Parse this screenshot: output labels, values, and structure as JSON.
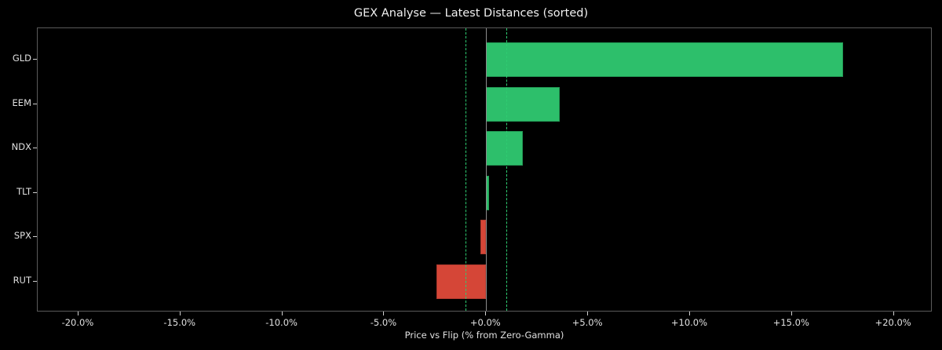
{
  "chart_data": {
    "type": "bar",
    "orientation": "horizontal",
    "title": "GEX Analyse — Latest Distances (sorted)",
    "xlabel": "Price vs Flip (% from Zero-Gamma)",
    "ylabel": "",
    "categories": [
      "GLD",
      "EEM",
      "NDX",
      "TLT",
      "SPX",
      "RUT"
    ],
    "values": [
      17.5,
      3.6,
      1.8,
      0.15,
      -0.27,
      -2.45
    ],
    "units": "%",
    "xlim": [
      -22.0,
      21.9
    ],
    "xticks": [
      -20,
      -15,
      -10,
      -5,
      0,
      5,
      10,
      15,
      20
    ],
    "xtick_labels": [
      "-20.0%",
      "-15.0%",
      "-10.0%",
      "-5.0%",
      "+0.0%",
      "+5.0%",
      "+10.0%",
      "+15.0%",
      "+20.0%"
    ],
    "reference_lines": [
      {
        "x": 0,
        "style": "solid",
        "color": "#8c8c8c"
      },
      {
        "x": -1.0,
        "style": "dashed",
        "color": "#2ecc71"
      },
      {
        "x": 1.0,
        "style": "dashed",
        "color": "#2ecc71"
      }
    ],
    "colors": {
      "positive": "#2dbf6b",
      "negative": "#d54637",
      "background": "#000000"
    },
    "grid": false,
    "legend": null
  }
}
